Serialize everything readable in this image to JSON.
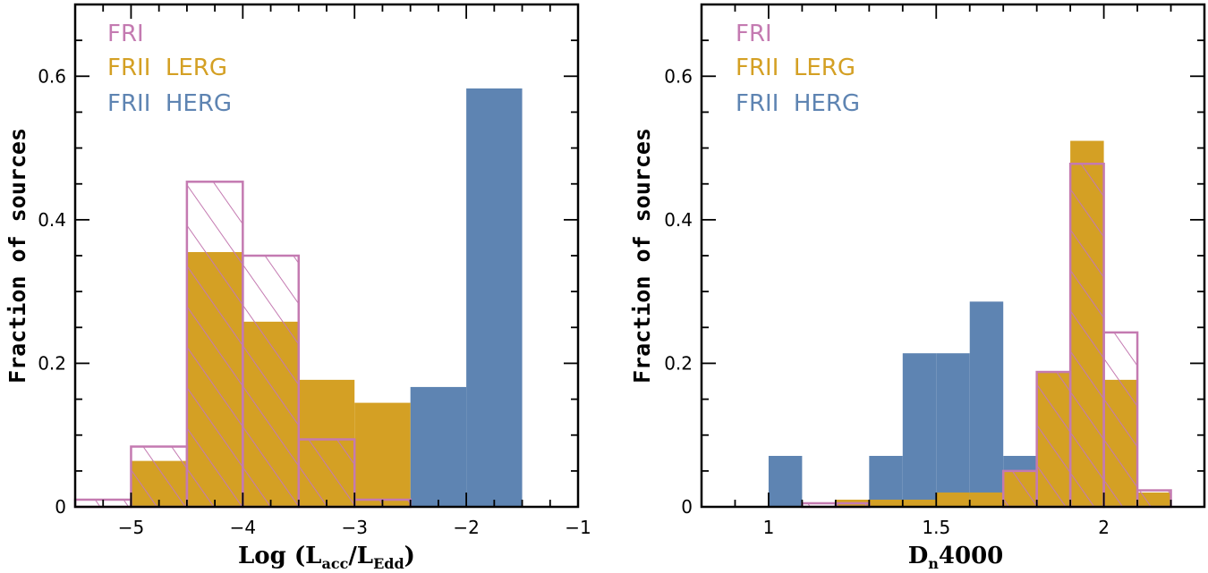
{
  "colors": {
    "fri": "#C47AB1",
    "frii_lerg": "#D4A024",
    "frii_herg": "#5E84B2"
  },
  "chart_data": [
    {
      "type": "bar",
      "id": "left",
      "xlabel": {
        "main": "Log (L",
        "sub1": "acc",
        "mid": "/L",
        "sub2": "Edd",
        "end": ")"
      },
      "ylabel": "Fraction of sources",
      "xlim": [
        -5.5,
        -1
      ],
      "ylim": [
        0,
        0.7
      ],
      "xticks": [
        -5,
        -4,
        -3,
        -2,
        -1
      ],
      "xtick_labels": [
        "−5",
        "−4",
        "−3",
        "−2",
        "−1"
      ],
      "yticks": [
        0,
        0.2,
        0.4,
        0.6
      ],
      "ytick_labels": [
        "0",
        "0.2",
        "0.4",
        "0.6"
      ],
      "legend": [
        "FRI",
        "FRII  LERG",
        "FRII  HERG"
      ],
      "series": [
        {
          "name": "FRII HERG",
          "style": "filled",
          "color_key": "frii_herg",
          "bins": [
            [
              -2.5,
              -2.0,
              0.167
            ],
            [
              -2.0,
              -1.5,
              0.583
            ]
          ]
        },
        {
          "name": "FRII LERG",
          "style": "filled",
          "color_key": "frii_lerg",
          "bins": [
            [
              -5.0,
              -4.5,
              0.064
            ],
            [
              -4.5,
              -4.0,
              0.355
            ],
            [
              -4.0,
              -3.5,
              0.258
            ],
            [
              -3.5,
              -3.0,
              0.177
            ],
            [
              -3.0,
              -2.5,
              0.145
            ]
          ]
        },
        {
          "name": "FRI",
          "style": "hatched",
          "color_key": "fri",
          "bins": [
            [
              -5.5,
              -5.0,
              0.01
            ],
            [
              -5.0,
              -4.5,
              0.084
            ],
            [
              -4.5,
              -4.0,
              0.453
            ],
            [
              -4.0,
              -3.5,
              0.35
            ],
            [
              -3.5,
              -3.0,
              0.094
            ],
            [
              -3.0,
              -2.5,
              0.01
            ]
          ]
        }
      ]
    },
    {
      "type": "bar",
      "id": "right",
      "xlabel": {
        "main": "D",
        "sub1": "n",
        "mid": "4000",
        "sub2": "",
        "end": ""
      },
      "ylabel": "Fraction of sources",
      "xlim": [
        0.8,
        2.3
      ],
      "ylim": [
        0,
        0.7
      ],
      "xticks": [
        1,
        1.5,
        2
      ],
      "xtick_labels": [
        "1",
        "1.5",
        "2"
      ],
      "yticks": [
        0,
        0.2,
        0.4,
        0.6
      ],
      "ytick_labels": [
        "0",
        "0.2",
        "0.4",
        "0.6"
      ],
      "legend": [
        "FRI",
        "FRII  LERG",
        "FRII  HERG"
      ],
      "series": [
        {
          "name": "FRII HERG",
          "style": "filled",
          "color_key": "frii_herg",
          "bins": [
            [
              1.0,
              1.1,
              0.071
            ],
            [
              1.3,
              1.4,
              0.071
            ],
            [
              1.4,
              1.5,
              0.214
            ],
            [
              1.5,
              1.6,
              0.214
            ],
            [
              1.6,
              1.7,
              0.286
            ],
            [
              1.7,
              1.8,
              0.071
            ]
          ]
        },
        {
          "name": "FRII LERG",
          "style": "filled",
          "color_key": "frii_lerg",
          "bins": [
            [
              1.2,
              1.3,
              0.01
            ],
            [
              1.3,
              1.4,
              0.01
            ],
            [
              1.4,
              1.5,
              0.01
            ],
            [
              1.5,
              1.6,
              0.02
            ],
            [
              1.6,
              1.7,
              0.02
            ],
            [
              1.7,
              1.8,
              0.05
            ],
            [
              1.8,
              1.9,
              0.188
            ],
            [
              1.9,
              2.0,
              0.51
            ],
            [
              2.0,
              2.1,
              0.177
            ],
            [
              2.1,
              2.2,
              0.02
            ]
          ]
        },
        {
          "name": "FRI",
          "style": "hatched",
          "color_key": "fri",
          "bins": [
            [
              1.1,
              1.2,
              0.005
            ],
            [
              1.2,
              1.3,
              0.005
            ],
            [
              1.7,
              1.8,
              0.05
            ],
            [
              1.8,
              1.9,
              0.188
            ],
            [
              1.9,
              2.0,
              0.478
            ],
            [
              2.0,
              2.1,
              0.243
            ],
            [
              2.1,
              2.2,
              0.023
            ]
          ]
        }
      ]
    }
  ]
}
